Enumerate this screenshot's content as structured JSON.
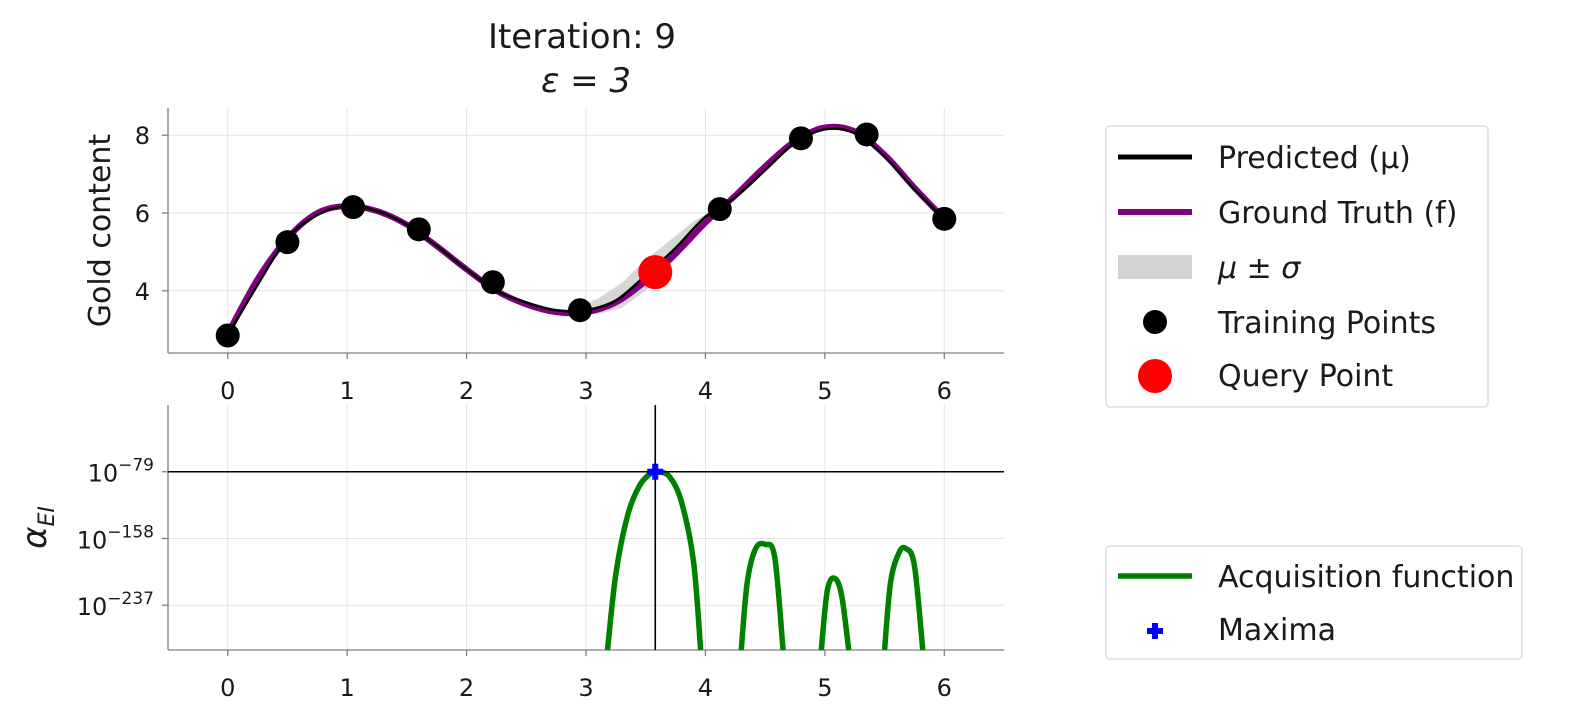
{
  "title_line1": "Iteration: 9",
  "title_line2": "ε = 3",
  "chart_data": [
    {
      "type": "line",
      "panel": "top",
      "ylabel": "Gold content",
      "xlim": [
        -0.5,
        6.5
      ],
      "ylim": [
        2.4,
        8.7
      ],
      "x_ticks": [
        0,
        1,
        2,
        3,
        4,
        5,
        6
      ],
      "y_ticks": [
        4,
        6,
        8
      ],
      "grid": true,
      "legend_position": "right",
      "series": [
        {
          "name": "Predicted (μ)",
          "color": "#000000",
          "x": [
            0,
            0.25,
            0.5,
            0.75,
            1.0,
            1.25,
            1.5,
            1.75,
            2.0,
            2.25,
            2.5,
            2.75,
            3.0,
            3.25,
            3.5,
            3.75,
            4.0,
            4.25,
            4.5,
            4.75,
            5.0,
            5.25,
            5.5,
            5.75,
            6.0
          ],
          "y": [
            2.85,
            4.15,
            5.35,
            5.95,
            6.18,
            6.05,
            5.7,
            5.15,
            4.55,
            4.0,
            3.7,
            3.5,
            3.5,
            3.75,
            4.4,
            5.1,
            5.9,
            6.4,
            7.1,
            7.8,
            8.15,
            8.05,
            7.45,
            6.6,
            5.85
          ]
        },
        {
          "name": "Ground Truth (f)",
          "color": "#800080",
          "x": [
            0,
            0.25,
            0.5,
            0.75,
            1.0,
            1.25,
            1.5,
            1.75,
            2.0,
            2.25,
            2.5,
            2.75,
            3.0,
            3.25,
            3.5,
            3.75,
            4.0,
            4.25,
            4.5,
            4.75,
            5.0,
            5.25,
            5.5,
            5.75,
            6.0
          ],
          "y": [
            2.9,
            4.3,
            5.35,
            6.0,
            6.18,
            6.05,
            5.7,
            5.15,
            4.55,
            4.0,
            3.65,
            3.45,
            3.45,
            3.7,
            4.25,
            4.95,
            5.75,
            6.45,
            7.2,
            7.85,
            8.2,
            8.1,
            7.5,
            6.65,
            5.85
          ]
        }
      ],
      "band": {
        "name": "μ ± σ",
        "color": "#d3d3d3",
        "x": [
          2.9,
          3.1,
          3.3,
          3.5,
          3.7,
          3.9,
          4.1
        ],
        "half_width": [
          0.05,
          0.2,
          0.32,
          0.4,
          0.33,
          0.2,
          0.05
        ]
      },
      "training_points": {
        "name": "Training Points",
        "color": "#000000",
        "x": [
          0.0,
          0.5,
          1.05,
          1.6,
          2.22,
          2.95,
          4.12,
          4.8,
          5.35,
          6.0
        ],
        "y": [
          2.85,
          5.25,
          6.15,
          5.58,
          4.22,
          3.5,
          6.1,
          7.92,
          8.02,
          5.85
        ]
      },
      "query_point": {
        "name": "Query Point",
        "color": "#ff0000",
        "x": 3.58,
        "y": 4.48
      }
    },
    {
      "type": "line",
      "panel": "bottom",
      "ylabel": "α_EI",
      "xlim": [
        -0.5,
        6.5
      ],
      "y_scale": "log",
      "ylim_log10": [
        -290,
        0
      ],
      "x_ticks": [
        0,
        1,
        2,
        3,
        4,
        5,
        6
      ],
      "y_ticks_log10": [
        -79,
        -158,
        -237
      ],
      "y_tick_base": "10",
      "y_tick_exponents": [
        "−79",
        "−158",
        "−237"
      ],
      "grid": true,
      "legend_position": "right",
      "series": [
        {
          "name": "Acquisition function",
          "color": "#008000",
          "segments": [
            {
              "x": [
                3.18,
                3.25,
                3.35,
                3.45,
                3.55,
                3.6,
                3.7,
                3.8,
                3.9,
                3.96
              ],
              "log10_y": [
                -290,
                -200,
                -130,
                -95,
                -80,
                -79,
                -85,
                -115,
                -185,
                -290
              ]
            },
            {
              "x": [
                4.3,
                4.35,
                4.42,
                4.5,
                4.58,
                4.65
              ],
              "log10_y": [
                -290,
                -210,
                -170,
                -165,
                -180,
                -290
              ]
            },
            {
              "x": [
                4.97,
                5.02,
                5.08,
                5.14,
                5.2
              ],
              "log10_y": [
                -290,
                -220,
                -205,
                -225,
                -290
              ]
            },
            {
              "x": [
                5.5,
                5.55,
                5.62,
                5.68,
                5.75,
                5.82
              ],
              "log10_y": [
                -290,
                -210,
                -175,
                -170,
                -190,
                -290
              ]
            }
          ]
        }
      ],
      "maxima": {
        "name": "Maxima",
        "color": "#0000ff",
        "x": 3.58,
        "log10_y": -79
      }
    }
  ]
}
